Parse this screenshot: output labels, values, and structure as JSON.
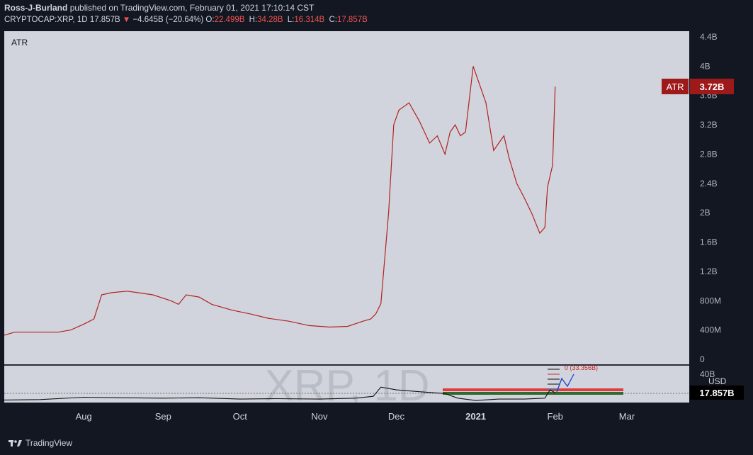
{
  "header": {
    "author": "Ross-J-Burland",
    "published": "published on TradingView.com, February 01, 2021 17:10:14 CST",
    "symbol": "CRYPTOCAP:XRP, 1D",
    "last": "17.857B",
    "arrow": "▼",
    "change": "−4.645B (−20.64%)",
    "o_label": "O:",
    "o": "22.499B",
    "h_label": "H:",
    "h": "34.28B",
    "l_label": "L:",
    "l": "16.314B",
    "c_label": "C:",
    "c": "17.857B"
  },
  "watermark": "XRP, 1D",
  "footer": {
    "brand": "TradingView"
  },
  "colors": {
    "atr_line": "#b22222",
    "atr_badge": "#9e1a1a",
    "pane_bg": "#d1d4dc",
    "bg": "#131722"
  },
  "chart_data": [
    {
      "type": "line",
      "pane": "ATR",
      "label": "ATR",
      "badge_label": "ATR",
      "last_value_label": "3.72B",
      "y_ticks": [
        "4.4B",
        "4B",
        "3.6B",
        "3.2B",
        "2.8B",
        "2.4B",
        "2B",
        "1.6B",
        "1.2B",
        "800M",
        "400M",
        "0"
      ],
      "y_tick_values": [
        4.4,
        4.0,
        3.6,
        3.2,
        2.8,
        2.4,
        2.0,
        1.6,
        1.2,
        0.8,
        0.4,
        0
      ],
      "ylim": [
        0,
        4.5
      ],
      "y_unit": "B",
      "x": [
        "2020-07-01",
        "2020-07-05",
        "2020-07-15",
        "2020-07-22",
        "2020-07-27",
        "2020-08-01",
        "2020-08-05",
        "2020-08-08",
        "2020-08-12",
        "2020-08-18",
        "2020-08-22",
        "2020-08-28",
        "2020-09-04",
        "2020-09-07",
        "2020-09-10",
        "2020-09-15",
        "2020-09-20",
        "2020-09-28",
        "2020-10-05",
        "2020-10-12",
        "2020-10-20",
        "2020-10-28",
        "2020-11-05",
        "2020-11-12",
        "2020-11-18",
        "2020-11-21",
        "2020-11-23",
        "2020-11-25",
        "2020-11-28",
        "2020-11-30",
        "2020-12-02",
        "2020-12-04",
        "2020-12-06",
        "2020-12-10",
        "2020-12-14",
        "2020-12-17",
        "2020-12-20",
        "2020-12-22",
        "2020-12-24",
        "2020-12-26",
        "2020-12-28",
        "2020-12-31",
        "2021-01-03",
        "2021-01-05",
        "2021-01-08",
        "2021-01-10",
        "2021-01-12",
        "2021-01-14",
        "2021-01-17",
        "2021-01-20",
        "2021-01-23",
        "2021-01-26",
        "2021-01-28",
        "2021-01-29",
        "2021-01-31",
        "2021-02-01"
      ],
      "values": [
        0.33,
        0.37,
        0.37,
        0.37,
        0.4,
        0.48,
        0.55,
        0.88,
        0.91,
        0.93,
        0.91,
        0.88,
        0.8,
        0.75,
        0.88,
        0.85,
        0.75,
        0.67,
        0.62,
        0.56,
        0.52,
        0.46,
        0.44,
        0.45,
        0.52,
        0.55,
        0.62,
        0.76,
        2.0,
        3.2,
        3.4,
        3.45,
        3.5,
        3.25,
        2.95,
        3.05,
        2.8,
        3.1,
        3.2,
        3.05,
        3.1,
        4.0,
        3.7,
        3.5,
        2.85,
        2.95,
        3.05,
        2.75,
        2.4,
        2.2,
        1.98,
        1.72,
        1.8,
        2.35,
        2.65,
        3.72
      ]
    },
    {
      "type": "line",
      "pane": "price",
      "label": "XRP, 1D",
      "y_unit_label": "USD",
      "y_tick_label": "40B",
      "last_value_label": "17.857B",
      "annotation_label": "0 (33.356B)",
      "x_ticks": [
        "Aug",
        "Sep",
        "Oct",
        "Nov",
        "Dec",
        "2021",
        "Feb",
        "Mar"
      ],
      "x_tick_dates": [
        "2020-08-01",
        "2020-09-01",
        "2020-10-01",
        "2020-11-01",
        "2020-12-01",
        "2021-01-01",
        "2021-02-01",
        "2021-03-01"
      ],
      "ylim": [
        8,
        45
      ],
      "x": [
        "2020-07-01",
        "2020-07-15",
        "2020-08-01",
        "2020-08-15",
        "2020-09-01",
        "2020-09-15",
        "2020-10-01",
        "2020-10-15",
        "2020-11-01",
        "2020-11-15",
        "2020-11-22",
        "2020-11-25",
        "2020-12-01",
        "2020-12-10",
        "2020-12-20",
        "2020-12-25",
        "2021-01-01",
        "2021-01-10",
        "2021-01-20",
        "2021-01-28",
        "2021-01-30",
        "2021-02-01"
      ],
      "values": [
        10,
        10.5,
        13,
        12.5,
        12,
        12.5,
        11,
        11.5,
        11,
        12,
        14,
        24,
        21,
        19,
        17,
        12,
        9.5,
        11,
        11,
        12,
        21,
        17.857
      ]
    }
  ]
}
